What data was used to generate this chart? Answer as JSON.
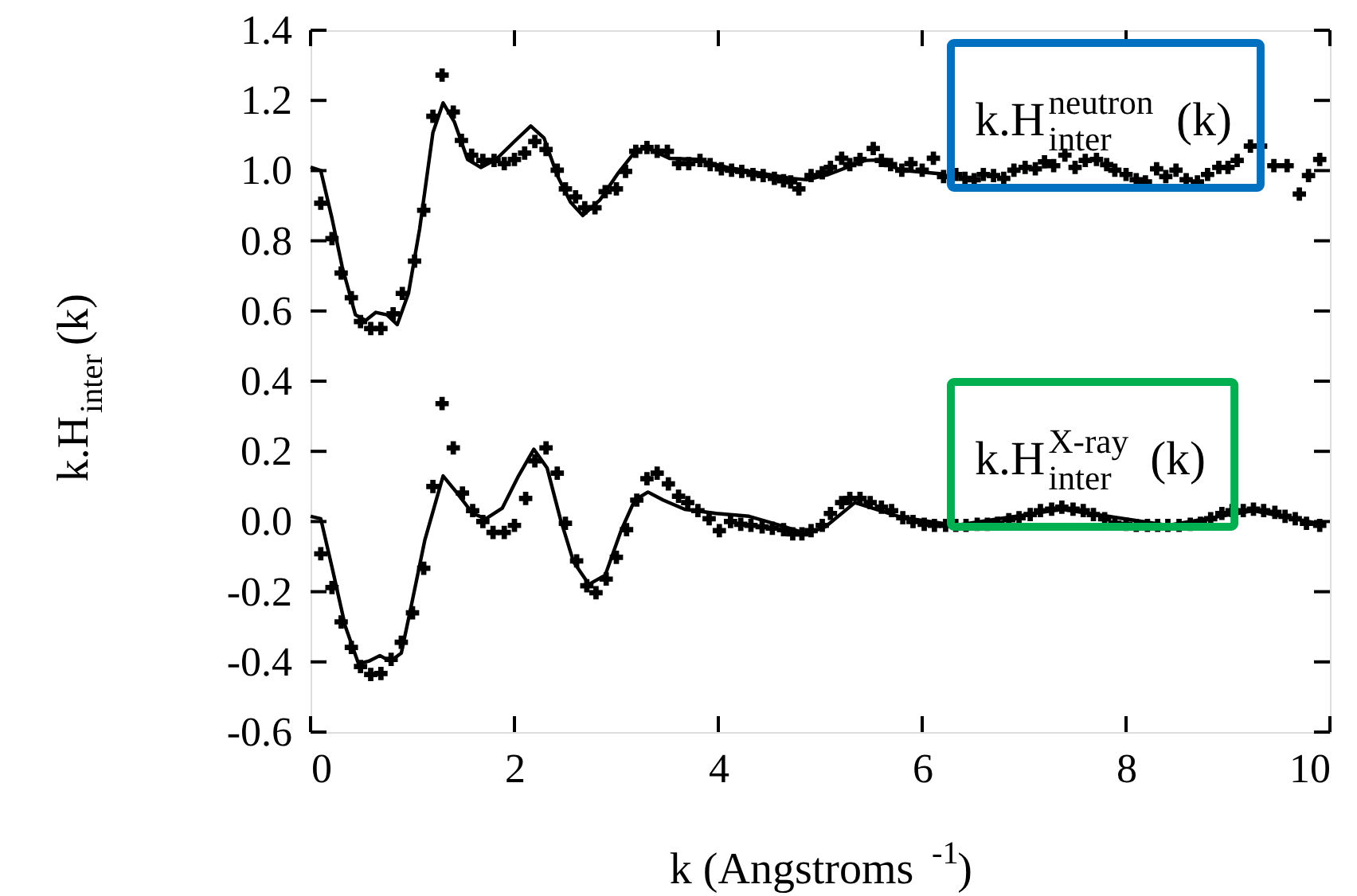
{
  "chart_data": {
    "type": "scatter",
    "xlabel": "k (Angstroms$^{-1}$)",
    "ylabel": "k.H$_{inter}$(k)",
    "legend": "top right",
    "xlim": [
      0,
      10
    ],
    "xticks": [
      0,
      2,
      4,
      6,
      8,
      10
    ],
    "ylim": [
      -0.6,
      1.4
    ],
    "yticks": [
      -0.6,
      -0.4,
      -0.2,
      {
        "value": 0,
        "label": "0.0"
      },
      0.2,
      0.4,
      0.6,
      0.8,
      {
        "value": 1,
        "label": "1.0"
      },
      1.2,
      1.4
    ],
    "series": [
      {
        "name": "k.H$_{inter}$$^{neutron}$ (k)",
        "marker": "cross",
        "color": "#000000",
        "x": [
          0.1,
          0.21,
          0.3,
          0.4,
          0.49,
          0.59,
          0.69,
          0.81,
          0.9,
          1.02,
          1.11,
          1.2,
          1.29,
          1.4,
          1.48,
          1.58,
          1.69,
          1.8,
          1.9,
          2.0,
          2.1,
          2.2,
          2.31,
          2.42,
          2.5,
          2.6,
          2.69,
          2.79,
          2.89,
          3.0,
          3.09,
          3.19,
          3.3,
          3.4,
          3.5,
          3.61,
          3.71,
          3.82,
          3.92,
          4.03,
          4.13,
          4.23,
          4.34,
          4.44,
          4.55,
          4.64,
          4.71,
          4.79,
          4.91,
          5.02,
          5.1,
          5.21,
          5.29,
          5.39,
          5.52,
          5.6,
          5.69,
          5.8,
          5.89,
          6.0,
          6.11,
          6.21,
          6.33,
          6.42,
          6.51,
          6.6,
          6.7,
          6.8,
          6.9,
          7.01,
          7.11,
          7.2,
          7.29,
          7.4,
          7.5,
          7.6,
          7.71,
          7.81,
          7.89,
          8.0,
          8.1,
          8.19,
          8.3,
          8.39,
          8.49,
          8.59,
          8.7,
          8.8,
          8.91,
          9.0,
          9.09,
          9.22,
          9.32,
          9.45,
          9.58,
          9.7,
          9.79,
          9.9
        ],
        "values": [
          0.907,
          0.806,
          0.708,
          0.638,
          0.57,
          0.55,
          0.55,
          0.592,
          0.65,
          0.742,
          0.887,
          1.155,
          1.272,
          1.167,
          1.086,
          1.044,
          1.029,
          1.029,
          1.02,
          1.032,
          1.05,
          1.083,
          1.06,
          1.001,
          0.948,
          0.925,
          0.894,
          0.894,
          0.94,
          0.948,
          0.998,
          1.055,
          1.066,
          1.055,
          1.055,
          1.02,
          1.02,
          1.029,
          1.017,
          1.005,
          1.001,
          0.998,
          0.989,
          0.986,
          0.978,
          0.971,
          0.968,
          0.948,
          0.986,
          0.994,
          1.009,
          1.035,
          1.017,
          1.032,
          1.063,
          1.029,
          1.017,
          1.001,
          1.02,
          1.001,
          1.035,
          0.983,
          0.989,
          0.978,
          0.974,
          0.989,
          0.986,
          0.978,
          1.001,
          1.009,
          1.005,
          1.025,
          1.014,
          1.044,
          1.009,
          1.029,
          1.032,
          1.017,
          1.001,
          0.989,
          0.974,
          0.968,
          1.005,
          0.983,
          1.001,
          0.974,
          0.968,
          0.989,
          1.009,
          1.009,
          1.029,
          1.07,
          1.07,
          1.014,
          1.014,
          0.933,
          0.986,
          1.032
        ]
      },
      {
        "type": "line",
        "marker": "none",
        "color": "#000000",
        "x": [
          0.0,
          0.1,
          0.21,
          0.31,
          0.44,
          0.54,
          0.64,
          0.75,
          0.85,
          0.96,
          1.07,
          1.2,
          1.3,
          1.41,
          1.54,
          1.67,
          1.82,
          2.01,
          2.16,
          2.29,
          2.42,
          2.55,
          2.67,
          2.84,
          3.02,
          3.2,
          3.31,
          3.52,
          3.78,
          4.09,
          4.4,
          4.71,
          4.87,
          5.08,
          5.44,
          5.55,
          5.8,
          6.21
        ],
        "values": [
          1.01,
          1.0,
          0.864,
          0.726,
          0.589,
          0.573,
          0.596,
          0.589,
          0.561,
          0.65,
          0.834,
          1.108,
          1.193,
          1.139,
          1.032,
          1.009,
          1.032,
          1.086,
          1.127,
          1.093,
          0.986,
          0.91,
          0.872,
          0.917,
          0.994,
          1.06,
          1.063,
          1.035,
          1.032,
          1.009,
          0.994,
          0.978,
          0.974,
          0.989,
          1.029,
          1.03,
          1.001,
          0.99
        ]
      },
      {
        "name": "k.H$_{inter}$$^{X-ray}$ (k)",
        "marker": "cross",
        "color": "#000000",
        "x": [
          0.1,
          0.21,
          0.3,
          0.4,
          0.49,
          0.59,
          0.69,
          0.79,
          0.89,
          1.0,
          1.11,
          1.2,
          1.29,
          1.4,
          1.49,
          1.59,
          1.69,
          1.79,
          1.9,
          2.0,
          2.11,
          2.2,
          2.31,
          2.42,
          2.5,
          2.61,
          2.71,
          2.8,
          2.9,
          3.0,
          3.1,
          3.2,
          3.3,
          3.4,
          3.51,
          3.61,
          3.7,
          3.8,
          3.91,
          4.01,
          4.12,
          4.22,
          4.32,
          4.43,
          4.53,
          4.64,
          4.73,
          4.82,
          4.91,
          5.02,
          5.1,
          5.21,
          5.29,
          5.39,
          5.49,
          5.6,
          5.7,
          5.81,
          5.91,
          6.02,
          6.12,
          6.23,
          6.33,
          6.43,
          6.54,
          6.64,
          6.74,
          6.85,
          6.95,
          7.06,
          7.16,
          7.27,
          7.37,
          7.48,
          7.58,
          7.68,
          7.79,
          7.89,
          8.0,
          8.1,
          8.21,
          8.31,
          8.41,
          8.52,
          8.63,
          8.73,
          8.83,
          8.94,
          9.04,
          9.15,
          9.25,
          9.35,
          9.46,
          9.56,
          9.66,
          9.77,
          9.9
        ],
        "values": [
          -0.092,
          -0.188,
          -0.286,
          -0.359,
          -0.413,
          -0.436,
          -0.433,
          -0.393,
          -0.344,
          -0.26,
          -0.133,
          0.1,
          0.336,
          0.21,
          0.081,
          0.031,
          0.0,
          -0.031,
          -0.031,
          -0.011,
          0.066,
          0.173,
          0.21,
          0.138,
          -0.005,
          -0.112,
          -0.183,
          -0.203,
          -0.164,
          -0.102,
          -0.023,
          0.061,
          0.122,
          0.138,
          0.107,
          0.072,
          0.054,
          0.031,
          0.008,
          -0.026,
          0.0,
          -0.008,
          -0.011,
          -0.015,
          -0.019,
          -0.023,
          -0.035,
          -0.035,
          -0.026,
          -0.011,
          0.023,
          0.054,
          0.066,
          0.066,
          0.054,
          0.041,
          0.031,
          0.011,
          0.0,
          -0.008,
          -0.011,
          -0.011,
          -0.011,
          -0.011,
          -0.008,
          -0.008,
          -0.005,
          0.005,
          0.011,
          0.02,
          0.031,
          0.035,
          0.041,
          0.035,
          0.031,
          0.02,
          0.008,
          -0.005,
          -0.008,
          -0.011,
          -0.011,
          -0.011,
          -0.011,
          -0.011,
          -0.008,
          -0.005,
          0.008,
          0.023,
          0.031,
          0.031,
          0.035,
          0.031,
          0.026,
          0.015,
          0.008,
          -0.005,
          -0.011
        ]
      },
      {
        "type": "line",
        "marker": "none",
        "color": "#000000",
        "x": [
          0.0,
          0.1,
          0.21,
          0.34,
          0.47,
          0.57,
          0.68,
          0.78,
          0.89,
          0.99,
          1.12,
          1.3,
          1.43,
          1.59,
          1.72,
          1.88,
          2.04,
          2.19,
          2.32,
          2.45,
          2.58,
          2.73,
          2.89,
          3.05,
          3.18,
          3.31,
          3.46,
          3.67,
          3.98,
          4.3,
          4.61,
          4.87,
          5.05,
          5.34,
          5.81,
          6.33,
          7.37,
          8.41,
          9.25,
          9.93
        ],
        "values": [
          0.015,
          0.008,
          -0.13,
          -0.298,
          -0.405,
          -0.398,
          -0.382,
          -0.398,
          -0.375,
          -0.237,
          -0.054,
          0.13,
          0.084,
          0.023,
          0.008,
          0.038,
          0.13,
          0.206,
          0.153,
          0.008,
          -0.115,
          -0.179,
          -0.153,
          -0.023,
          0.061,
          0.084,
          0.061,
          0.035,
          0.023,
          0.015,
          -0.011,
          -0.035,
          -0.015,
          0.054,
          0.011,
          -0.011,
          0.035,
          -0.011,
          0.031,
          -0.008
        ]
      }
    ]
  }
}
